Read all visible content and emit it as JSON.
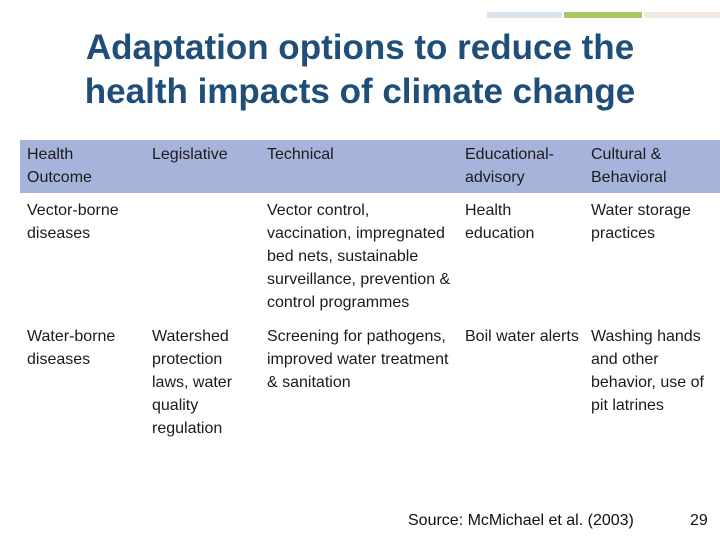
{
  "colors": {
    "title": "#1f4e79",
    "header_fill": "#a6b4db",
    "accent_green": "#a8c766",
    "accent_blue_light": "#dbe4ee",
    "accent_peach_light": "#f2e9e0"
  },
  "title_lines": [
    "Adaptation options to reduce the",
    "health impacts of climate change"
  ],
  "table": {
    "headers": [
      "Health Outcome",
      "Legislative",
      "Technical",
      "Educational-advisory",
      "Cultural & Behavioral"
    ],
    "rows": [
      {
        "outcome": "Vector-borne diseases",
        "legislative": "",
        "technical": "Vector control, vaccination, impregnated bed nets, sustainable surveillance, prevention & control programmes",
        "educational": "Health education",
        "cultural": "Water storage practices"
      },
      {
        "outcome": "Water-borne diseases",
        "legislative": "Watershed protection laws, water quality regulation",
        "technical": "Screening for pathogens, improved water treatment & sanitation",
        "educational": "Boil water alerts",
        "cultural": "Washing hands and other behavior, use of pit latrines"
      }
    ]
  },
  "source": "Source: McMichael et al. (2003)",
  "page_number": "29"
}
